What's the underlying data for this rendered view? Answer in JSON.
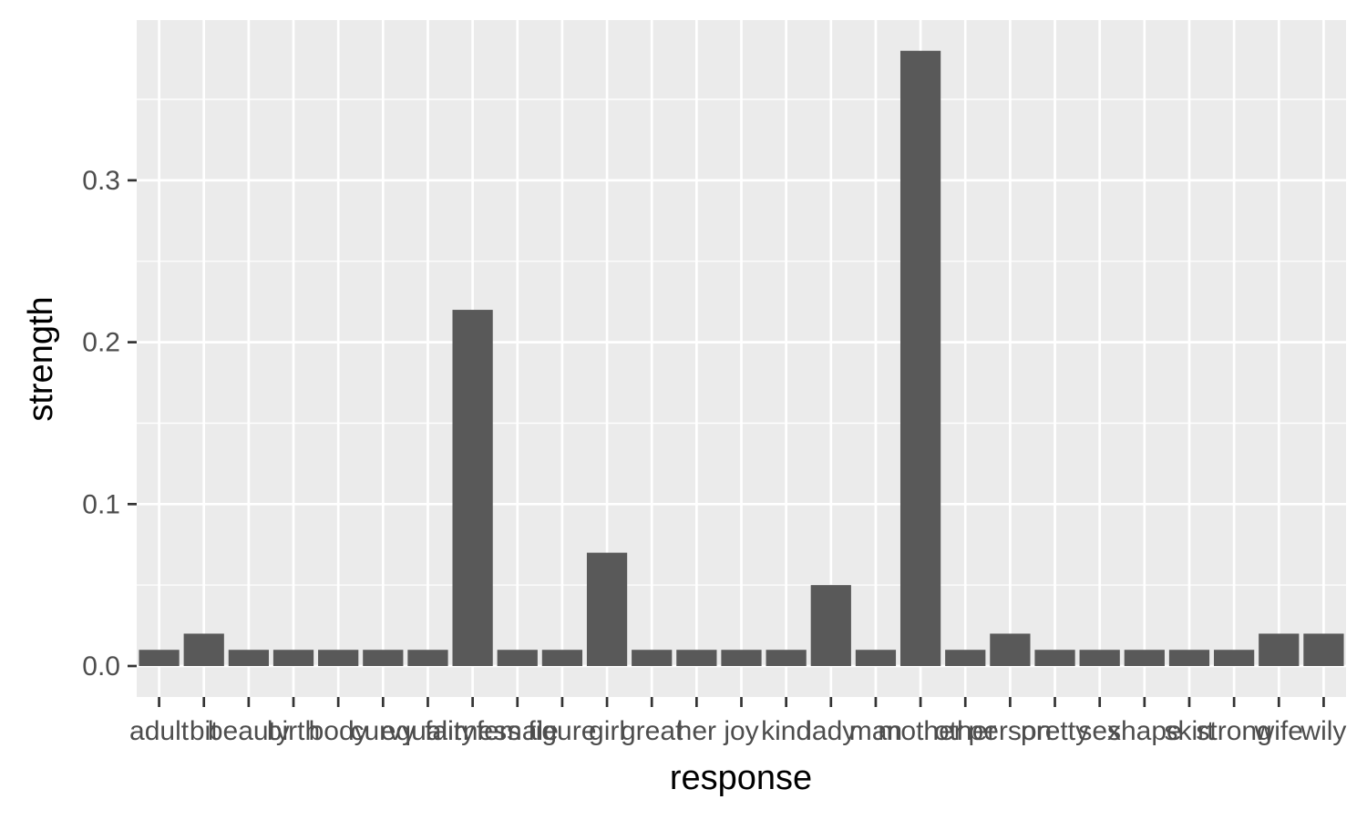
{
  "chart_data": {
    "type": "bar",
    "title": "",
    "xlabel": "response",
    "ylabel": "strength",
    "categories": [
      "adult",
      "bit",
      "beauty",
      "birth",
      "body",
      "curvy",
      "equality",
      "fairness",
      "female",
      "figure",
      "girl",
      "great",
      "her",
      "joy",
      "kind",
      "lady",
      "man",
      "mother",
      "other",
      "person",
      "pretty",
      "sex",
      "shape",
      "skirt",
      "strong",
      "wife",
      "wily"
    ],
    "values": [
      0.01,
      0.02,
      0.01,
      0.01,
      0.01,
      0.01,
      0.01,
      0.22,
      0.01,
      0.01,
      0.07,
      0.01,
      0.01,
      0.01,
      0.01,
      0.05,
      0.01,
      0.38,
      0.01,
      0.02,
      0.01,
      0.01,
      0.01,
      0.01,
      0.01,
      0.02,
      0.02
    ],
    "ylim": [
      -0.02,
      0.4
    ],
    "yticks": [
      0.0,
      0.1,
      0.2,
      0.3
    ],
    "ytick_labels": [
      "0.0",
      "0.1",
      "0.2",
      "0.3"
    ],
    "grid": true,
    "legend": "none",
    "colors": {
      "panel": "#ebebeb",
      "grid": "#ffffff",
      "bar": "#595959",
      "tick": "#333333"
    }
  }
}
